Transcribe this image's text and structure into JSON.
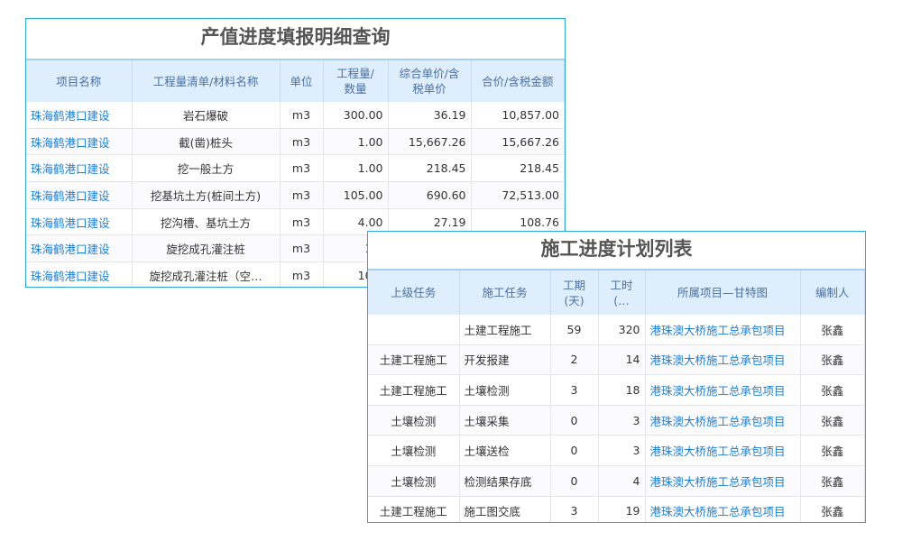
{
  "table1": {
    "title": "产值进度填报明细查询",
    "headers": [
      "项目名称",
      "工程量清单/材料名称",
      "单位",
      "工程量/数量",
      "综合单价/含税单价",
      "合价/含税金额"
    ],
    "rows": [
      [
        "珠海鹤港口建设",
        "岩石爆破",
        "m3",
        "300.00",
        "36.19",
        "10,857.00"
      ],
      [
        "珠海鹤港口建设",
        "截(凿)桩头",
        "m3",
        "1.00",
        "15,667.26",
        "15,667.26"
      ],
      [
        "珠海鹤港口建设",
        "挖一般土方",
        "m3",
        "1.00",
        "218.45",
        "218.45"
      ],
      [
        "珠海鹤港口建设",
        "挖基坑土方(桩间土方)",
        "m3",
        "105.00",
        "690.60",
        "72,513.00"
      ],
      [
        "珠海鹤港口建设",
        "挖沟槽、基坑土方",
        "m3",
        "4.00",
        "27.19",
        "108.76"
      ],
      [
        "珠海鹤港口建设",
        "旋挖成孔灌注桩",
        "m3",
        "1.0",
        "",
        ""
      ],
      [
        "珠海鹤港口建设",
        "旋挖成孔灌注桩（空…",
        "m3",
        "10.0",
        "",
        ""
      ]
    ]
  },
  "table2": {
    "title": "施工进度计划列表",
    "headers": [
      "上级任务",
      "施工任务",
      "工期(天)",
      "工时(…",
      "所属项目—甘特图",
      "编制人"
    ],
    "rows": [
      [
        "",
        "土建工程施工",
        "59",
        "320",
        "港珠澳大桥施工总承包项目",
        "张鑫"
      ],
      [
        "土建工程施工",
        "开发报建",
        "2",
        "14",
        "港珠澳大桥施工总承包项目",
        "张鑫"
      ],
      [
        "土建工程施工",
        "土壤检测",
        "3",
        "18",
        "港珠澳大桥施工总承包项目",
        "张鑫"
      ],
      [
        "土壤检测",
        "土壤采集",
        "0",
        "3",
        "港珠澳大桥施工总承包项目",
        "张鑫"
      ],
      [
        "土壤检测",
        "土壤送检",
        "0",
        "3",
        "港珠澳大桥施工总承包项目",
        "张鑫"
      ],
      [
        "土壤检测",
        "检测结果存底",
        "0",
        "4",
        "港珠澳大桥施工总承包项目",
        "张鑫"
      ],
      [
        "土建工程施工",
        "施工图交底",
        "3",
        "19",
        "港珠澳大桥施工总承包项目",
        "张鑫"
      ]
    ]
  },
  "colors": {
    "border": "#29a8e0",
    "header_bg": "#deeefc",
    "link": "#1b7fd6"
  }
}
